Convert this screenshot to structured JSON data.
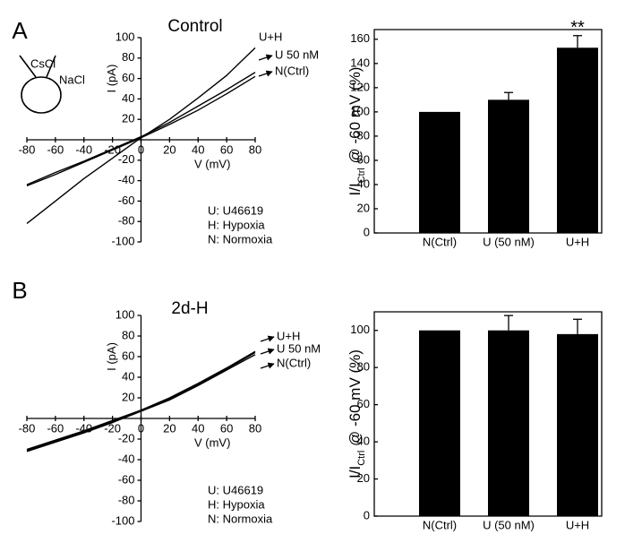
{
  "chart_data": [
    {
      "type": "line",
      "panel_label": "A",
      "title": "Control",
      "xlabel": "V (mV)",
      "ylabel": "I (pA)",
      "inset_labels": [
        "CsCl",
        "NaCl"
      ],
      "notes": [
        "U: U46619",
        "H: Hypoxia",
        "N: Normoxia"
      ],
      "x": [
        -80,
        -60,
        -40,
        -20,
        0,
        20,
        40,
        60,
        80
      ],
      "series": [
        {
          "name": "U+H",
          "color": "#000000",
          "values": [
            -82,
            -60,
            -38,
            -18,
            2,
            20,
            41,
            63,
            90
          ]
        },
        {
          "name": "U 50 nM",
          "color": "#000000",
          "values": [
            -44,
            -32,
            -21,
            -9,
            3,
            17,
            33,
            49,
            66
          ]
        },
        {
          "name": "N(Ctrl)",
          "color": "#000000",
          "values": [
            -45,
            -34,
            -22,
            -10,
            2,
            15,
            29,
            45,
            62
          ]
        }
      ],
      "xlim": [
        -80,
        80
      ],
      "xticks": [
        -80,
        -60,
        -40,
        -20,
        0,
        20,
        40,
        60,
        80
      ],
      "ylim": [
        -100,
        100
      ],
      "yticks": [
        -100,
        -80,
        -60,
        -40,
        -20,
        20,
        40,
        60,
        80,
        100
      ]
    },
    {
      "type": "bar",
      "ylabel_parts": [
        "I/I",
        "Ctrl",
        " @ -60 mV (%)"
      ],
      "annotation": "**",
      "categories": [
        "N(Ctrl)",
        "U (50 nM)",
        "U+H"
      ],
      "values": [
        100,
        110,
        153
      ],
      "errors": [
        0,
        6,
        10
      ],
      "color": "#000000",
      "ylim": [
        0,
        168
      ],
      "yticks": [
        0,
        20,
        40,
        60,
        80,
        100,
        120,
        140,
        160
      ]
    },
    {
      "type": "line",
      "panel_label": "B",
      "title": "2d-H",
      "xlabel": "V (mV)",
      "ylabel": "I (pA)",
      "notes": [
        "U: U46619",
        "H: Hypoxia",
        "N: Normoxia"
      ],
      "x": [
        -80,
        -60,
        -40,
        -20,
        0,
        20,
        40,
        60,
        80
      ],
      "series": [
        {
          "name": "U+H",
          "color": "#000000",
          "values": [
            -30,
            -21,
            -12,
            -2,
            8,
            20,
            34,
            49,
            65
          ]
        },
        {
          "name": "U 50 nM",
          "color": "#000000",
          "values": [
            -31,
            -22,
            -13,
            -3,
            8,
            19,
            33,
            48,
            64
          ]
        },
        {
          "name": "N(Ctrl)",
          "color": "#000000",
          "values": [
            -32,
            -23,
            -14,
            -4,
            7,
            18,
            32,
            47,
            62
          ]
        }
      ],
      "xlim": [
        -80,
        80
      ],
      "xticks": [
        -80,
        -60,
        -40,
        -20,
        0,
        20,
        40,
        60,
        80
      ],
      "ylim": [
        -100,
        100
      ],
      "yticks": [
        -100,
        -80,
        -60,
        -40,
        -20,
        20,
        40,
        60,
        80,
        100
      ]
    },
    {
      "type": "bar",
      "ylabel_parts": [
        "I/I",
        "Ctrl",
        " @ -60 mV (%)"
      ],
      "categories": [
        "N(Ctrl)",
        "U (50 nM)",
        "U+H"
      ],
      "values": [
        100,
        100,
        98
      ],
      "errors": [
        0,
        8,
        8
      ],
      "color": "#000000",
      "ylim": [
        0,
        110
      ],
      "yticks": [
        0,
        20,
        40,
        60,
        80,
        100
      ]
    }
  ]
}
